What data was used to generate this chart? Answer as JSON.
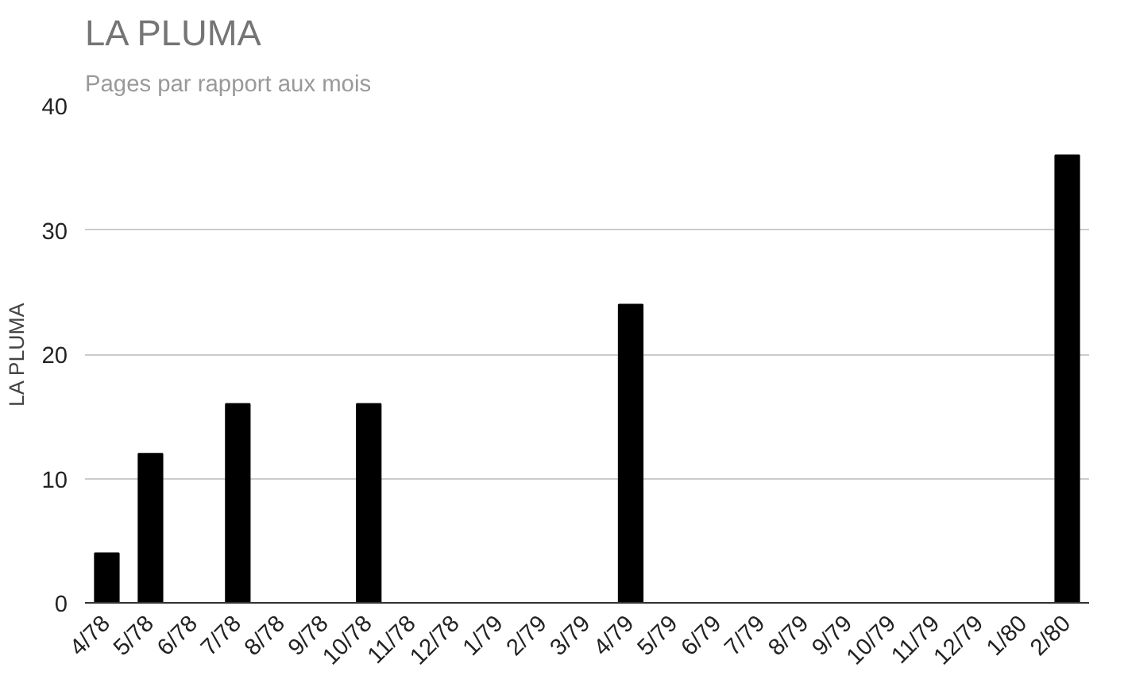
{
  "chart_data": {
    "type": "bar",
    "title": "LA PLUMA",
    "subtitle": "Pages par rapport aux mois",
    "ylabel": "LA PLUMA",
    "categories": [
      "4/78",
      "5/78",
      "6/78",
      "7/78",
      "8/78",
      "9/78",
      "10/78",
      "11/78",
      "12/78",
      "1/79",
      "2/79",
      "3/79",
      "4/79",
      "5/79",
      "6/79",
      "7/79",
      "8/79",
      "9/79",
      "10/79",
      "11/79",
      "12/79",
      "1/80",
      "2/80"
    ],
    "values": [
      4,
      12,
      0,
      16,
      0,
      0,
      16,
      0,
      0,
      0,
      0,
      0,
      24,
      0,
      0,
      0,
      0,
      0,
      0,
      0,
      0,
      0,
      36
    ],
    "color": "#000000",
    "ylim": [
      0,
      40
    ],
    "yticks": [
      0,
      10,
      20,
      30,
      40
    ],
    "grid": "y"
  }
}
